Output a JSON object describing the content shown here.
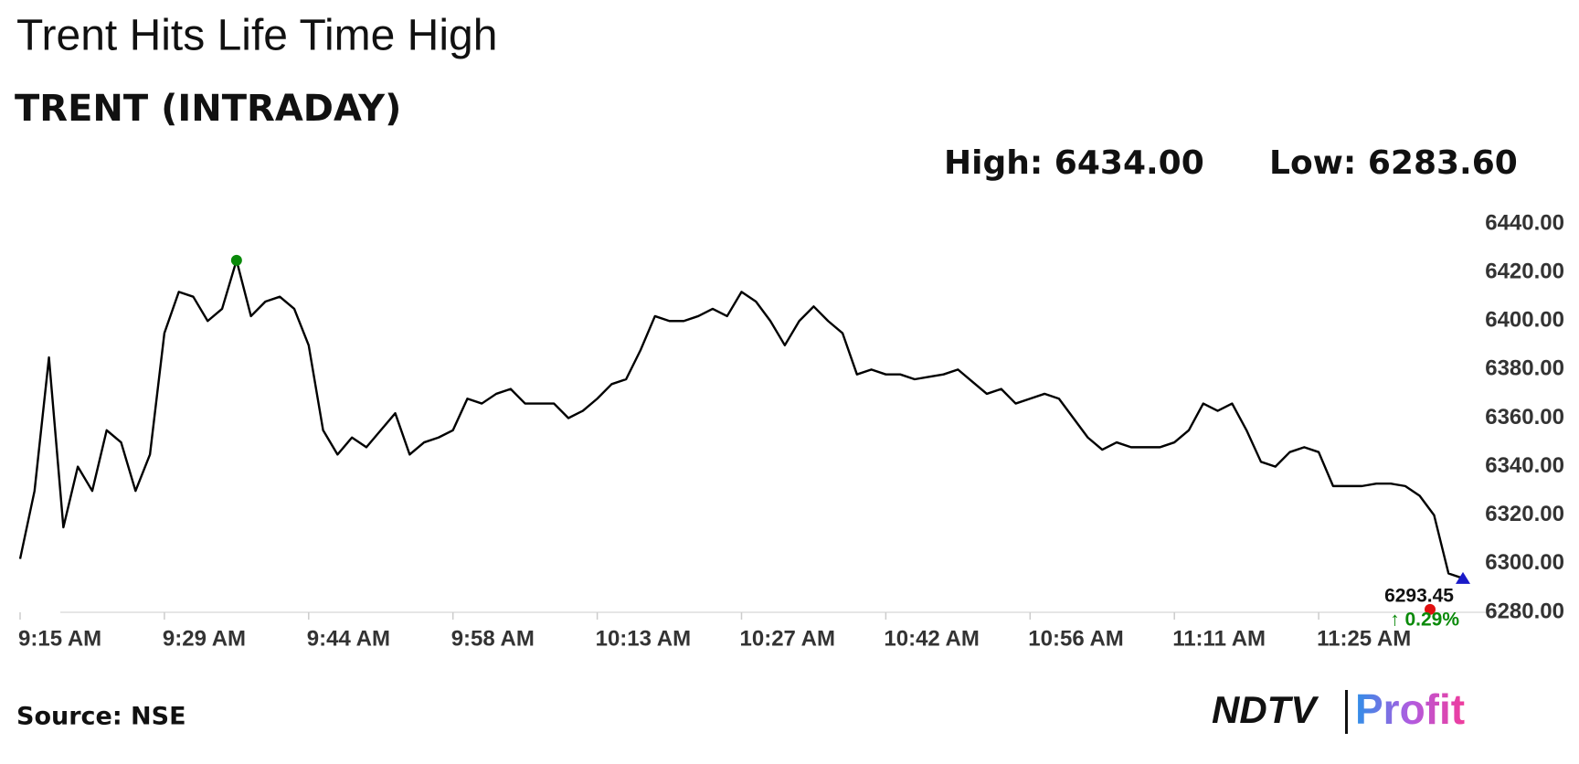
{
  "chart_data": {
    "type": "line",
    "title": "Trent Hits Life Time High",
    "subtitle": "TRENT (INTRADAY)",
    "high_label": "High: 6434.00",
    "low_label": "Low: 6283.60",
    "last_value_label": "6293.45",
    "change_label": "↑ 0.29%",
    "source": "Source: NSE",
    "logo": [
      "NDTV",
      "Profit"
    ],
    "categories": [
      "9:15 AM",
      null,
      null,
      null,
      null,
      null,
      null,
      null,
      null,
      null,
      "9:29 AM",
      null,
      null,
      null,
      null,
      null,
      null,
      null,
      null,
      null,
      "9:44 AM",
      null,
      null,
      null,
      null,
      null,
      null,
      null,
      null,
      null,
      "9:58 AM",
      null,
      null,
      null,
      null,
      null,
      null,
      null,
      null,
      null,
      "10:13 AM",
      null,
      null,
      null,
      null,
      null,
      null,
      null,
      null,
      null,
      "10:27 AM",
      null,
      null,
      null,
      null,
      null,
      null,
      null,
      null,
      null,
      "10:42 AM",
      null,
      null,
      null,
      null,
      null,
      null,
      null,
      null,
      null,
      "10:56 AM",
      null,
      null,
      null,
      null,
      null,
      null,
      null,
      null,
      null,
      "11:11 AM",
      null,
      null,
      null,
      null,
      null,
      null,
      null,
      null,
      null,
      "11:25 AM",
      null,
      null,
      null,
      null,
      null,
      null,
      null,
      null,
      null,
      null
    ],
    "series": [
      {
        "name": "TRENT",
        "color": "#000000",
        "values": [
          6302,
          6330,
          6385,
          6315,
          6340,
          6330,
          6355,
          6350,
          6330,
          6345,
          6395,
          6412,
          6410,
          6400,
          6405,
          6425,
          6402,
          6408,
          6410,
          6405,
          6390,
          6355,
          6345,
          6352,
          6348,
          6355,
          6362,
          6345,
          6350,
          6352,
          6355,
          6368,
          6366,
          6370,
          6372,
          6366,
          6366,
          6366,
          6360,
          6363,
          6368,
          6374,
          6376,
          6388,
          6402,
          6400,
          6400,
          6402,
          6405,
          6402,
          6412,
          6408,
          6400,
          6390,
          6400,
          6406,
          6400,
          6395,
          6378,
          6380,
          6378,
          6378,
          6376,
          6377,
          6378,
          6380,
          6375,
          6370,
          6372,
          6366,
          6368,
          6370,
          6368,
          6360,
          6352,
          6347,
          6350,
          6348,
          6348,
          6348,
          6350,
          6355,
          6366,
          6363,
          6366,
          6355,
          6342,
          6340,
          6346,
          6348,
          6346,
          6332,
          6332,
          6332,
          6333,
          6333,
          6332,
          6328,
          6320,
          6296,
          6294
        ]
      }
    ],
    "ylim": [
      6280,
      6440
    ],
    "yticks": [
      {
        "value": 6280,
        "label": "6280.00"
      },
      {
        "value": 6300,
        "label": "6300.00"
      },
      {
        "value": 6320,
        "label": "6320.00"
      },
      {
        "value": 6340,
        "label": "6340.00"
      },
      {
        "value": 6360,
        "label": "6360.00"
      },
      {
        "value": 6380,
        "label": "6380.00"
      },
      {
        "value": 6400,
        "label": "6400.00"
      },
      {
        "value": 6420,
        "label": "6420.00"
      },
      {
        "value": 6440,
        "label": "6440.00"
      }
    ],
    "high_color": "#0a8a0a",
    "low_color": "#e01010",
    "end_color": "#1a1ac8"
  }
}
